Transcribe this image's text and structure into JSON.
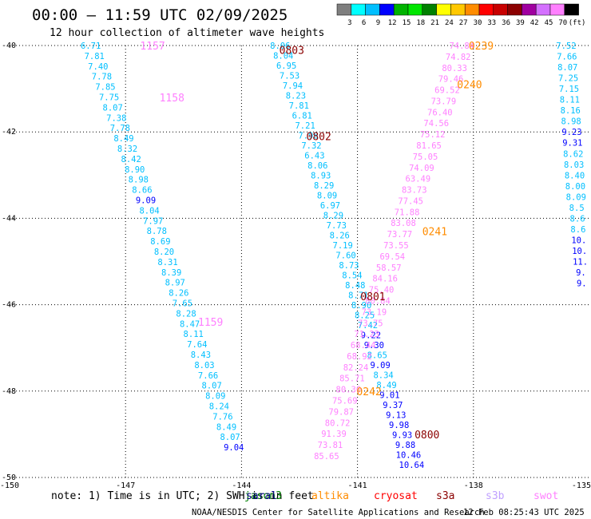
{
  "title": "00:00 – 11:59 UTC 02/09/2025",
  "subtitle": "12 hour collection of altimeter wave heights",
  "note": "note: 1) Time is in UTC; 2) SWH is in feet",
  "credit": "NOAA/NESDIS Center for Satellite Applications and Research",
  "timestamp": "12 Feb 08:25:43 UTC 2025",
  "colorbar": {
    "labels": [
      "3",
      "6",
      "9",
      "12",
      "15",
      "18",
      "21",
      "24",
      "27",
      "30",
      "33",
      "36",
      "39",
      "42",
      "45",
      "70",
      "(ft)"
    ],
    "colors": [
      "#7f7f7f",
      "#00ffff",
      "#00bfff",
      "#0000ff",
      "#00b300",
      "#00e600",
      "#008000",
      "#ffff00",
      "#ffc800",
      "#ff8c00",
      "#ff0000",
      "#c80000",
      "#8b0000",
      "#a000a0",
      "#d470ff",
      "#ff80ff",
      "#000000"
    ]
  },
  "legend": [
    {
      "name": "jason3",
      "color": "#008000"
    },
    {
      "name": "saral",
      "color": "#000080"
    },
    {
      "name": "altika",
      "color": "#ff8c00"
    },
    {
      "name": "cryosat",
      "color": "#ff0000"
    },
    {
      "name": "s3a",
      "color": "#8b0000"
    },
    {
      "name": "s3b",
      "color": "#c0a0ff"
    },
    {
      "name": "swot",
      "color": "#ff80ff"
    }
  ],
  "chart_data": {
    "type": "scatter",
    "xlabel": "",
    "ylabel": "",
    "xlim": [
      -150,
      -135
    ],
    "ylim": [
      -50,
      -40
    ],
    "x_ticks": [
      -147,
      -144,
      -141,
      -138
    ],
    "y_ticks": [
      -40,
      -42,
      -44,
      -46,
      -48,
      -50
    ],
    "corner_labels": {
      "x_left": "-150",
      "x_right": "-135"
    },
    "grid": true,
    "time_labels": [
      {
        "text": "1157",
        "lon": -146.3,
        "lat": -40.0,
        "color": "#ff80ff"
      },
      {
        "text": "1158",
        "lon": -145.8,
        "lat": -41.2,
        "color": "#ff80ff"
      },
      {
        "text": "1159",
        "lon": -144.8,
        "lat": -46.4,
        "color": "#ff80ff"
      },
      {
        "text": "0803",
        "lon": -142.7,
        "lat": -40.1,
        "color": "#8b0000"
      },
      {
        "text": "0802",
        "lon": -142.0,
        "lat": -42.1,
        "color": "#8b0000"
      },
      {
        "text": "0801",
        "lon": -140.6,
        "lat": -45.8,
        "color": "#8b0000"
      },
      {
        "text": "0800",
        "lon": -139.2,
        "lat": -49.0,
        "color": "#8b0000"
      },
      {
        "text": "0239",
        "lon": -137.8,
        "lat": -40.0,
        "color": "#ff8c00"
      },
      {
        "text": "0240",
        "lon": -138.1,
        "lat": -40.9,
        "color": "#ff8c00"
      },
      {
        "text": "0241",
        "lon": -139.0,
        "lat": -44.3,
        "color": "#ff8c00"
      },
      {
        "text": "0242",
        "lon": -140.7,
        "lat": -48.0,
        "color": "#ff8c00"
      }
    ],
    "series": [
      {
        "name": "1157–1159",
        "lon_start": -147.9,
        "lat_start": -40.0,
        "lon_end": -144.2,
        "lat_end": -49.3,
        "values": [
          {
            "v": "6.71",
            "c": "#00bfff"
          },
          {
            "v": "7.81",
            "c": "#00bfff"
          },
          {
            "v": "7.40",
            "c": "#00bfff"
          },
          {
            "v": "7.78",
            "c": "#00bfff"
          },
          {
            "v": "7.85",
            "c": "#00bfff"
          },
          {
            "v": "7.75",
            "c": "#00bfff"
          },
          {
            "v": "8.07",
            "c": "#00bfff"
          },
          {
            "v": "7.38",
            "c": "#00bfff"
          },
          {
            "v": "7.78",
            "c": "#00bfff"
          },
          {
            "v": "8.49",
            "c": "#00bfff"
          },
          {
            "v": "8.32",
            "c": "#00bfff"
          },
          {
            "v": "8.42",
            "c": "#00bfff"
          },
          {
            "v": "8.90",
            "c": "#00bfff"
          },
          {
            "v": "8.98",
            "c": "#00bfff"
          },
          {
            "v": "8.66",
            "c": "#00bfff"
          },
          {
            "v": "9.09",
            "c": "#0000ff"
          },
          {
            "v": "8.04",
            "c": "#00bfff"
          },
          {
            "v": "7.97",
            "c": "#00bfff"
          },
          {
            "v": "8.78",
            "c": "#00bfff"
          },
          {
            "v": "8.69",
            "c": "#00bfff"
          },
          {
            "v": "8.20",
            "c": "#00bfff"
          },
          {
            "v": "8.31",
            "c": "#00bfff"
          },
          {
            "v": "8.39",
            "c": "#00bfff"
          },
          {
            "v": "8.97",
            "c": "#00bfff"
          },
          {
            "v": "8.26",
            "c": "#00bfff"
          },
          {
            "v": "7.65",
            "c": "#00bfff"
          },
          {
            "v": "8.28",
            "c": "#00bfff"
          },
          {
            "v": "8.47",
            "c": "#00bfff"
          },
          {
            "v": "8.11",
            "c": "#00bfff"
          },
          {
            "v": "7.64",
            "c": "#00bfff"
          },
          {
            "v": "8.43",
            "c": "#00bfff"
          },
          {
            "v": "8.03",
            "c": "#00bfff"
          },
          {
            "v": "7.66",
            "c": "#00bfff"
          },
          {
            "v": "8.07",
            "c": "#00bfff"
          },
          {
            "v": "8.09",
            "c": "#00bfff"
          },
          {
            "v": "8.24",
            "c": "#00bfff"
          },
          {
            "v": "7.76",
            "c": "#00bfff"
          },
          {
            "v": "8.49",
            "c": "#00bfff"
          },
          {
            "v": "8.07",
            "c": "#00bfff"
          },
          {
            "v": "9.04",
            "c": "#0000ff"
          }
        ]
      },
      {
        "name": "0800–0803",
        "lon_start": -143.0,
        "lat_start": -40.0,
        "lon_end": -139.6,
        "lat_end": -49.7,
        "values": [
          {
            "v": "8.06",
            "c": "#00bfff"
          },
          {
            "v": "8.04",
            "c": "#00bfff"
          },
          {
            "v": "6.95",
            "c": "#00bfff"
          },
          {
            "v": "7.53",
            "c": "#00bfff"
          },
          {
            "v": "7.94",
            "c": "#00bfff"
          },
          {
            "v": "8.23",
            "c": "#00bfff"
          },
          {
            "v": "7.81",
            "c": "#00bfff"
          },
          {
            "v": "6.81",
            "c": "#00bfff"
          },
          {
            "v": "7.21",
            "c": "#00bfff"
          },
          {
            "v": "7.98",
            "c": "#00bfff"
          },
          {
            "v": "7.32",
            "c": "#00bfff"
          },
          {
            "v": "6.43",
            "c": "#00bfff"
          },
          {
            "v": "8.06",
            "c": "#00bfff"
          },
          {
            "v": "8.93",
            "c": "#00bfff"
          },
          {
            "v": "8.29",
            "c": "#00bfff"
          },
          {
            "v": "8.09",
            "c": "#00bfff"
          },
          {
            "v": "6.97",
            "c": "#00bfff"
          },
          {
            "v": "8.29",
            "c": "#00bfff"
          },
          {
            "v": "7.73",
            "c": "#00bfff"
          },
          {
            "v": "8.26",
            "c": "#00bfff"
          },
          {
            "v": "7.19",
            "c": "#00bfff"
          },
          {
            "v": "7.60",
            "c": "#00bfff"
          },
          {
            "v": "8.73",
            "c": "#00bfff"
          },
          {
            "v": "8.54",
            "c": "#00bfff"
          },
          {
            "v": "8.48",
            "c": "#00bfff"
          },
          {
            "v": "8.71",
            "c": "#00bfff"
          },
          {
            "v": "8.90",
            "c": "#00bfff"
          },
          {
            "v": "8.25",
            "c": "#00bfff"
          },
          {
            "v": "7.42",
            "c": "#00bfff"
          },
          {
            "v": "9.22",
            "c": "#0000ff"
          },
          {
            "v": "9.30",
            "c": "#0000ff"
          },
          {
            "v": "8.65",
            "c": "#00bfff"
          },
          {
            "v": "9.09",
            "c": "#0000ff"
          },
          {
            "v": "8.34",
            "c": "#00bfff"
          },
          {
            "v": "8.49",
            "c": "#00bfff"
          },
          {
            "v": "9.01",
            "c": "#0000ff"
          },
          {
            "v": "9.37",
            "c": "#0000ff"
          },
          {
            "v": "9.13",
            "c": "#0000ff"
          },
          {
            "v": "9.98",
            "c": "#0000ff"
          },
          {
            "v": "9.93",
            "c": "#0000ff"
          },
          {
            "v": "9.88",
            "c": "#0000ff"
          },
          {
            "v": "10.46",
            "c": "#0000ff"
          },
          {
            "v": "10.64",
            "c": "#0000ff"
          }
        ]
      },
      {
        "name": "0239–0242",
        "lon_start": -138.3,
        "lat_start": -40.0,
        "lon_end": -141.8,
        "lat_end": -49.5,
        "values": [
          {
            "v": "74.84",
            "c": "#ff80ff"
          },
          {
            "v": "74.82",
            "c": "#ff80ff"
          },
          {
            "v": "80.33",
            "c": "#ff80ff"
          },
          {
            "v": "79.46",
            "c": "#ff80ff"
          },
          {
            "v": "69.52",
            "c": "#ff80ff"
          },
          {
            "v": "73.79",
            "c": "#ff80ff"
          },
          {
            "v": "76.40",
            "c": "#ff80ff"
          },
          {
            "v": "74.56",
            "c": "#ff80ff"
          },
          {
            "v": "75.12",
            "c": "#ff80ff"
          },
          {
            "v": "81.65",
            "c": "#ff80ff"
          },
          {
            "v": "75.05",
            "c": "#ff80ff"
          },
          {
            "v": "74.09",
            "c": "#ff80ff"
          },
          {
            "v": "63.49",
            "c": "#ff80ff"
          },
          {
            "v": "83.73",
            "c": "#ff80ff"
          },
          {
            "v": "77.45",
            "c": "#ff80ff"
          },
          {
            "v": "71.88",
            "c": "#ff80ff"
          },
          {
            "v": "83.08",
            "c": "#ff80ff"
          },
          {
            "v": "73.77",
            "c": "#ff80ff"
          },
          {
            "v": "73.55",
            "c": "#ff80ff"
          },
          {
            "v": "69.54",
            "c": "#ff80ff"
          },
          {
            "v": "58.57",
            "c": "#ff80ff"
          },
          {
            "v": "84.16",
            "c": "#ff80ff"
          },
          {
            "v": "75.40",
            "c": "#ff80ff"
          },
          {
            "v": "80.84",
            "c": "#ff80ff"
          },
          {
            "v": "73.19",
            "c": "#ff80ff"
          },
          {
            "v": "73.75",
            "c": "#ff80ff"
          },
          {
            "v": "71.23",
            "c": "#ff80ff"
          },
          {
            "v": "68.44",
            "c": "#ff80ff"
          },
          {
            "v": "68.92",
            "c": "#ff80ff"
          },
          {
            "v": "82.24",
            "c": "#ff80ff"
          },
          {
            "v": "85.71",
            "c": "#ff80ff"
          },
          {
            "v": "80.30",
            "c": "#ff80ff"
          },
          {
            "v": "75.69",
            "c": "#ff80ff"
          },
          {
            "v": "79.87",
            "c": "#ff80ff"
          },
          {
            "v": "80.72",
            "c": "#ff80ff"
          },
          {
            "v": "91.39",
            "c": "#ff80ff"
          },
          {
            "v": "73.81",
            "c": "#ff80ff"
          },
          {
            "v": "85.65",
            "c": "#ff80ff"
          }
        ]
      },
      {
        "name": "right edge",
        "lon_start": -135.6,
        "lat_start": -40.0,
        "lon_end": -135.2,
        "lat_end": -45.5,
        "values": [
          {
            "v": "7.52",
            "c": "#00bfff"
          },
          {
            "v": "7.66",
            "c": "#00bfff"
          },
          {
            "v": "8.07",
            "c": "#00bfff"
          },
          {
            "v": "7.25",
            "c": "#00bfff"
          },
          {
            "v": "7.15",
            "c": "#00bfff"
          },
          {
            "v": "8.11",
            "c": "#00bfff"
          },
          {
            "v": "8.16",
            "c": "#00bfff"
          },
          {
            "v": "8.98",
            "c": "#00bfff"
          },
          {
            "v": "9.23",
            "c": "#0000ff"
          },
          {
            "v": "9.31",
            "c": "#0000ff"
          },
          {
            "v": "8.62",
            "c": "#00bfff"
          },
          {
            "v": "8.03",
            "c": "#00bfff"
          },
          {
            "v": "8.40",
            "c": "#00bfff"
          },
          {
            "v": "8.00",
            "c": "#00bfff"
          },
          {
            "v": "8.09",
            "c": "#00bfff"
          },
          {
            "v": "8.5",
            "c": "#00bfff"
          },
          {
            "v": "8.6",
            "c": "#00bfff"
          },
          {
            "v": "8.6",
            "c": "#00bfff"
          },
          {
            "v": "10.",
            "c": "#0000ff"
          },
          {
            "v": "10.",
            "c": "#0000ff"
          },
          {
            "v": "11.",
            "c": "#0000ff"
          },
          {
            "v": "9.",
            "c": "#0000ff"
          },
          {
            "v": "9.",
            "c": "#0000ff"
          }
        ]
      }
    ]
  }
}
